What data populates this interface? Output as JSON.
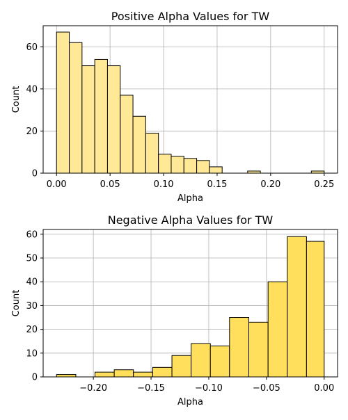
{
  "chart_data": [
    {
      "type": "bar",
      "title": "Positive Alpha Values for TW",
      "xlabel": "Alpha",
      "ylabel": "Count",
      "xlim": [
        -0.0125,
        0.2625
      ],
      "ylim": [
        0,
        70
      ],
      "xticks": [
        0.0,
        0.05,
        0.1,
        0.15,
        0.2,
        0.25
      ],
      "xtick_labels": [
        "0.00",
        "0.05",
        "0.10",
        "0.15",
        "0.20",
        "0.25"
      ],
      "yticks": [
        0,
        20,
        40,
        60
      ],
      "ytick_labels": [
        "0",
        "20",
        "40",
        "60"
      ],
      "grid": true,
      "bar_color": "#ffe896",
      "bins": [
        {
          "x0": 0.0,
          "x1": 0.0119,
          "count": 67
        },
        {
          "x0": 0.0119,
          "x1": 0.0238,
          "count": 62
        },
        {
          "x0": 0.0238,
          "x1": 0.0357,
          "count": 51
        },
        {
          "x0": 0.0357,
          "x1": 0.0476,
          "count": 54
        },
        {
          "x0": 0.0476,
          "x1": 0.0595,
          "count": 51
        },
        {
          "x0": 0.0595,
          "x1": 0.0714,
          "count": 37
        },
        {
          "x0": 0.0714,
          "x1": 0.0833,
          "count": 27
        },
        {
          "x0": 0.0833,
          "x1": 0.0952,
          "count": 19
        },
        {
          "x0": 0.0952,
          "x1": 0.1071,
          "count": 9
        },
        {
          "x0": 0.1071,
          "x1": 0.119,
          "count": 8
        },
        {
          "x0": 0.119,
          "x1": 0.1309,
          "count": 7
        },
        {
          "x0": 0.1309,
          "x1": 0.1428,
          "count": 6
        },
        {
          "x0": 0.1428,
          "x1": 0.1547,
          "count": 3
        },
        {
          "x0": 0.1547,
          "x1": 0.1666,
          "count": 0
        },
        {
          "x0": 0.1666,
          "x1": 0.1785,
          "count": 0
        },
        {
          "x0": 0.1785,
          "x1": 0.1904,
          "count": 1
        },
        {
          "x0": 0.1904,
          "x1": 0.2023,
          "count": 0
        },
        {
          "x0": 0.2023,
          "x1": 0.2142,
          "count": 0
        },
        {
          "x0": 0.2142,
          "x1": 0.2261,
          "count": 0
        },
        {
          "x0": 0.2261,
          "x1": 0.238,
          "count": 0
        },
        {
          "x0": 0.238,
          "x1": 0.25,
          "count": 1
        }
      ]
    },
    {
      "type": "bar",
      "title": "Negative Alpha Values for TW",
      "xlabel": "Alpha",
      "ylabel": "Count",
      "xlim": [
        -0.2435,
        0.0116
      ],
      "ylim": [
        0,
        62
      ],
      "xticks": [
        -0.2,
        -0.15,
        -0.1,
        -0.05,
        0.0
      ],
      "xtick_labels": [
        "−0.20",
        "−0.15",
        "−0.10",
        "−0.05",
        "0.00"
      ],
      "yticks": [
        0,
        10,
        20,
        30,
        40,
        50,
        60
      ],
      "ytick_labels": [
        "0",
        "10",
        "20",
        "30",
        "40",
        "50",
        "60"
      ],
      "grid": true,
      "bar_color": "#ffdf5c",
      "bins": [
        {
          "x0": -0.2319,
          "x1": -0.2152,
          "count": 1
        },
        {
          "x0": -0.2152,
          "x1": -0.1986,
          "count": 0
        },
        {
          "x0": -0.1986,
          "x1": -0.1819,
          "count": 2
        },
        {
          "x0": -0.1819,
          "x1": -0.1653,
          "count": 3
        },
        {
          "x0": -0.1653,
          "x1": -0.1486,
          "count": 2
        },
        {
          "x0": -0.1486,
          "x1": -0.1319,
          "count": 4
        },
        {
          "x0": -0.1319,
          "x1": -0.1153,
          "count": 9
        },
        {
          "x0": -0.1153,
          "x1": -0.0986,
          "count": 14
        },
        {
          "x0": -0.0986,
          "x1": -0.082,
          "count": 13
        },
        {
          "x0": -0.082,
          "x1": -0.0653,
          "count": 25
        },
        {
          "x0": -0.0653,
          "x1": -0.0486,
          "count": 23
        },
        {
          "x0": -0.0486,
          "x1": -0.032,
          "count": 40
        },
        {
          "x0": -0.032,
          "x1": -0.0153,
          "count": 59
        },
        {
          "x0": -0.0153,
          "x1": 0.0,
          "count": 57
        }
      ]
    }
  ]
}
